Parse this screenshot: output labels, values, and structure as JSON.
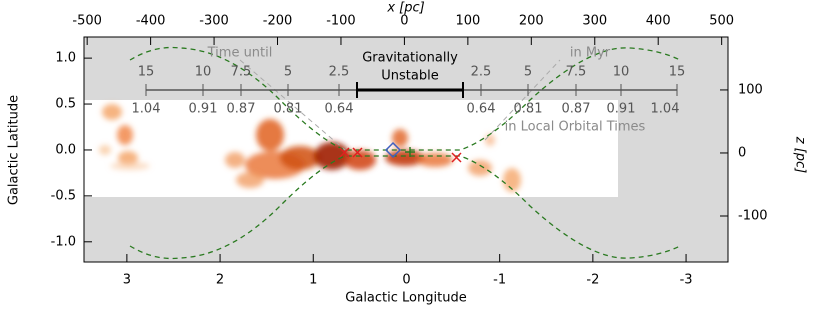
{
  "chart_data": {
    "type": "map",
    "x_label": "Galactic Longitude",
    "y_label": "Galactic Latitude",
    "x2_label": "x [pc]",
    "y2_label": "z [pc]",
    "xlim": [
      3.46,
      -3.45
    ],
    "xticks": [
      3,
      2,
      1,
      0,
      -1,
      -2,
      -3
    ],
    "ylim": [
      -1.22,
      1.23
    ],
    "yticks": [
      {
        "value": 1,
        "label": "1.0"
      },
      0.5,
      {
        "value": 0,
        "label": "0.0"
      },
      -0.5,
      {
        "value": -1,
        "label": "-1.0"
      }
    ],
    "x2lim": [
      -505,
      510
    ],
    "x2ticks": [
      -500,
      -400,
      -300,
      -200,
      -100,
      0,
      100,
      200,
      300,
      400,
      500
    ],
    "y2lim": [
      -173,
      184
    ],
    "y2ticks": [
      100,
      0,
      -100
    ],
    "scale_bar": {
      "left_label": "Time until",
      "right_label": "in Myr",
      "lower_label": "in Local Orbital Times",
      "center_label_1": "Gravitationally",
      "center_label_2": "Unstable",
      "myr_left": [
        15,
        10,
        7.5,
        5,
        2.5
      ],
      "myr_right": [
        2.5,
        5,
        7.5,
        10,
        15
      ],
      "orbital_left": [
        1.04,
        0.91,
        0.87,
        0.81,
        0.64
      ],
      "orbital_right": [
        0.64,
        0.81,
        0.87,
        0.91,
        1.04
      ]
    }
  }
}
